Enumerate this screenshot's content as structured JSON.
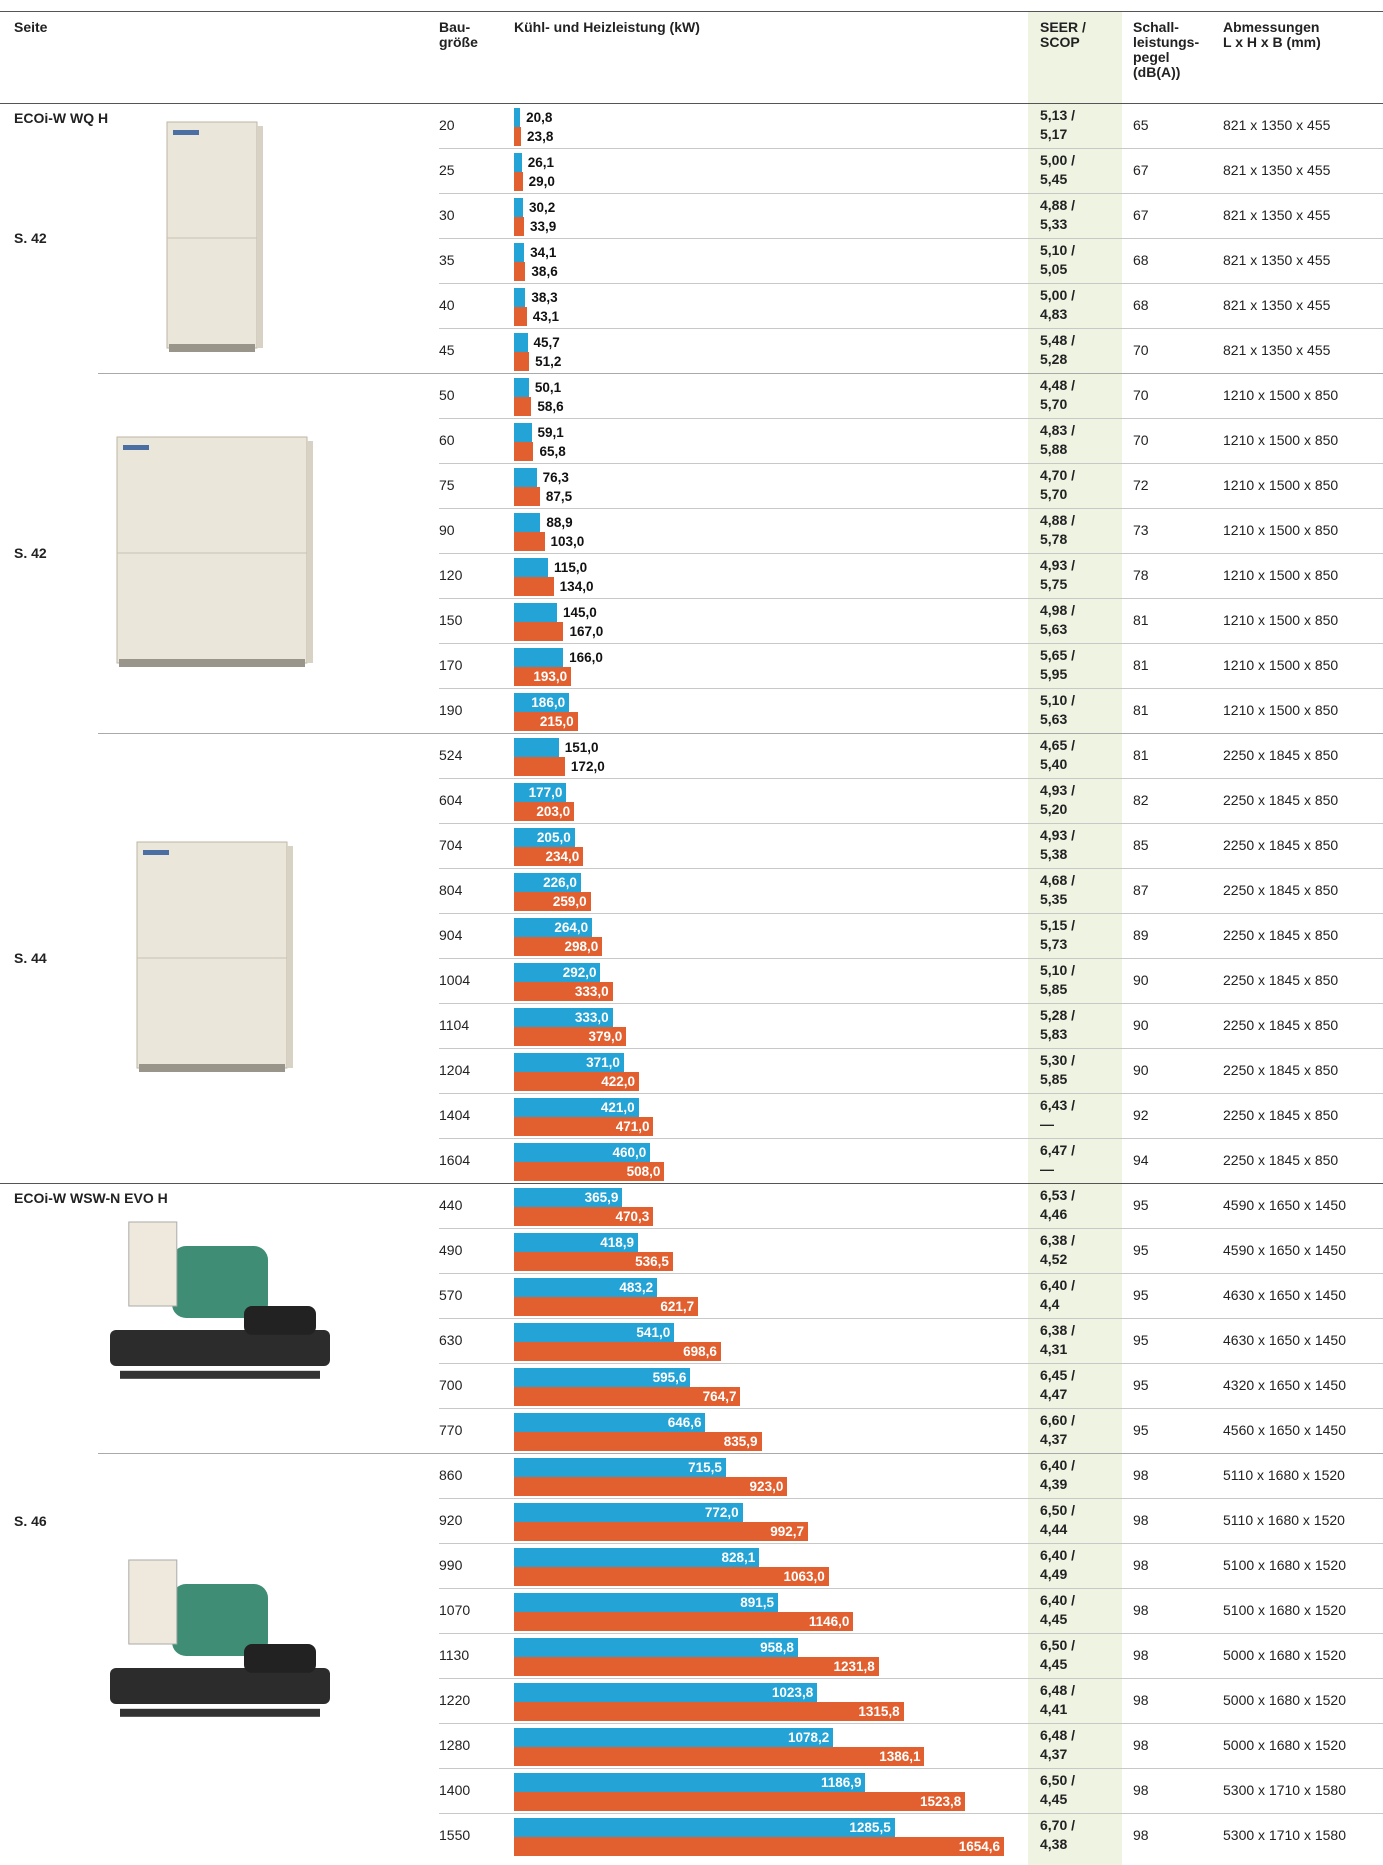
{
  "header": {
    "page": "Seite",
    "size": "Bau-\ngröße",
    "capacity": "Kühl- und Heizleistung (kW)",
    "efficiency": "SEER /\nSCOP",
    "noise": "Schall-\nleistungs-\npegel\n(dB(A))",
    "dims": "Abmessungen\nL x H x B (mm)"
  },
  "colors": {
    "cooling": "#23a3d6",
    "heating": "#e2602f"
  },
  "sections": [
    {
      "name": "ECOi-W WQ H",
      "blocks": [
        {
          "page": "S. 42",
          "rows": [
            {
              "size": "20",
              "cool": {
                "value": 20.8,
                "label": "20,8"
              },
              "heat": {
                "value": 23.8,
                "label": "23,8"
              },
              "seer": "5,13 /",
              "scop": "5,17",
              "noise": 65,
              "dims": "821 x 1350 x 455"
            },
            {
              "size": "25",
              "cool": {
                "value": 26.1,
                "label": "26,1"
              },
              "heat": {
                "value": 29.0,
                "label": "29,0"
              },
              "seer": "5,00 /",
              "scop": "5,45",
              "noise": 67,
              "dims": "821 x 1350 x 455"
            },
            {
              "size": "30",
              "cool": {
                "value": 30.2,
                "label": "30,2"
              },
              "heat": {
                "value": 33.9,
                "label": "33,9"
              },
              "seer": "4,88 /",
              "scop": "5,33",
              "noise": 67,
              "dims": "821 x 1350 x 455"
            },
            {
              "size": "35",
              "cool": {
                "value": 34.1,
                "label": "34,1"
              },
              "heat": {
                "value": 38.6,
                "label": "38,6"
              },
              "seer": "5,10 /",
              "scop": "5,05",
              "noise": 68,
              "dims": "821 x 1350 x 455"
            },
            {
              "size": "40",
              "cool": {
                "value": 38.3,
                "label": "38,3"
              },
              "heat": {
                "value": 43.1,
                "label": "43,1"
              },
              "seer": "5,00 /",
              "scop": "4,83",
              "noise": 68,
              "dims": "821 x 1350 x 455"
            },
            {
              "size": "45",
              "cool": {
                "value": 45.7,
                "label": "45,7"
              },
              "heat": {
                "value": 51.2,
                "label": "51,2"
              },
              "seer": "5,48 /",
              "scop": "5,28",
              "noise": 70,
              "dims": "821 x 1350 x 455"
            }
          ]
        },
        {
          "page": "S. 42",
          "rows": [
            {
              "size": "50",
              "cool": {
                "value": 50.1,
                "label": "50,1"
              },
              "heat": {
                "value": 58.6,
                "label": "58,6"
              },
              "seer": "4,48 /",
              "scop": "5,70",
              "noise": 70,
              "dims": "1210 x 1500 x 850"
            },
            {
              "size": "60",
              "cool": {
                "value": 59.1,
                "label": "59,1"
              },
              "heat": {
                "value": 65.8,
                "label": "65,8"
              },
              "seer": "4,83 /",
              "scop": "5,88",
              "noise": 70,
              "dims": "1210 x 1500 x 850"
            },
            {
              "size": "75",
              "cool": {
                "value": 76.3,
                "label": "76,3"
              },
              "heat": {
                "value": 87.5,
                "label": "87,5"
              },
              "seer": "4,70 /",
              "scop": "5,70",
              "noise": 72,
              "dims": "1210 x 1500 x 850"
            },
            {
              "size": "90",
              "cool": {
                "value": 88.9,
                "label": "88,9"
              },
              "heat": {
                "value": 103.0,
                "label": "103,0"
              },
              "seer": "4,88 /",
              "scop": "5,78",
              "noise": 73,
              "dims": "1210 x 1500 x 850"
            },
            {
              "size": "120",
              "cool": {
                "value": 115.0,
                "label": "115,0"
              },
              "heat": {
                "value": 134.0,
                "label": "134,0"
              },
              "seer": "4,93 /",
              "scop": "5,75",
              "noise": 78,
              "dims": "1210 x 1500 x 850"
            },
            {
              "size": "150",
              "cool": {
                "value": 145.0,
                "label": "145,0"
              },
              "heat": {
                "value": 167.0,
                "label": "167,0"
              },
              "seer": "4,98 /",
              "scop": "5,63",
              "noise": 81,
              "dims": "1210 x 1500 x 850"
            },
            {
              "size": "170",
              "cool": {
                "value": 166.0,
                "label": "166,0"
              },
              "heat": {
                "value": 193.0,
                "label": "193,0"
              },
              "seer": "5,65 /",
              "scop": "5,95",
              "noise": 81,
              "dims": "1210 x 1500 x 850"
            },
            {
              "size": "190",
              "cool": {
                "value": 186.0,
                "label": "186,0"
              },
              "heat": {
                "value": 215.0,
                "label": "215,0"
              },
              "seer": "5,10 /",
              "scop": "5,63",
              "noise": 81,
              "dims": "1210 x 1500 x 850"
            }
          ]
        },
        {
          "page": "S. 44",
          "rows": [
            {
              "size": "524",
              "cool": {
                "value": 151.0,
                "label": "151,0"
              },
              "heat": {
                "value": 172.0,
                "label": "172,0"
              },
              "seer": "4,65 /",
              "scop": "5,40",
              "noise": 81,
              "dims": "2250 x 1845 x 850"
            },
            {
              "size": "604",
              "cool": {
                "value": 177.0,
                "label": "177,0"
              },
              "heat": {
                "value": 203.0,
                "label": "203,0"
              },
              "seer": "4,93 /",
              "scop": "5,20",
              "noise": 82,
              "dims": "2250 x 1845 x 850"
            },
            {
              "size": "704",
              "cool": {
                "value": 205.0,
                "label": "205,0"
              },
              "heat": {
                "value": 234.0,
                "label": "234,0"
              },
              "seer": "4,93 /",
              "scop": "5,38",
              "noise": 85,
              "dims": "2250 x 1845 x 850"
            },
            {
              "size": "804",
              "cool": {
                "value": 226.0,
                "label": "226,0"
              },
              "heat": {
                "value": 259.0,
                "label": "259,0"
              },
              "seer": "4,68 /",
              "scop": "5,35",
              "noise": 87,
              "dims": "2250 x 1845 x 850"
            },
            {
              "size": "904",
              "cool": {
                "value": 264.0,
                "label": "264,0"
              },
              "heat": {
                "value": 298.0,
                "label": "298,0"
              },
              "seer": "5,15 /",
              "scop": "5,73",
              "noise": 89,
              "dims": "2250 x 1845 x 850"
            },
            {
              "size": "1004",
              "cool": {
                "value": 292.0,
                "label": "292,0"
              },
              "heat": {
                "value": 333.0,
                "label": "333,0"
              },
              "seer": "5,10 /",
              "scop": "5,85",
              "noise": 90,
              "dims": "2250 x 1845 x 850"
            },
            {
              "size": "1104",
              "cool": {
                "value": 333.0,
                "label": "333,0"
              },
              "heat": {
                "value": 379.0,
                "label": "379,0"
              },
              "seer": "5,28 /",
              "scop": "5,83",
              "noise": 90,
              "dims": "2250 x 1845 x 850"
            },
            {
              "size": "1204",
              "cool": {
                "value": 371.0,
                "label": "371,0"
              },
              "heat": {
                "value": 422.0,
                "label": "422,0"
              },
              "seer": "5,30 /",
              "scop": "5,85",
              "noise": 90,
              "dims": "2250 x 1845 x 850"
            },
            {
              "size": "1404",
              "cool": {
                "value": 421.0,
                "label": "421,0"
              },
              "heat": {
                "value": 471.0,
                "label": "471,0"
              },
              "seer": "6,43 /",
              "scop": "—",
              "noise": 92,
              "dims": "2250 x 1845 x 850"
            },
            {
              "size": "1604",
              "cool": {
                "value": 460.0,
                "label": "460,0"
              },
              "heat": {
                "value": 508.0,
                "label": "508,0"
              },
              "seer": "6,47 /",
              "scop": "—",
              "noise": 94,
              "dims": "2250 x 1845 x 850"
            }
          ]
        }
      ]
    },
    {
      "name": "ECOi-W WSW-N EVO H",
      "page": "S. 46",
      "blocks": [
        {
          "rows": [
            {
              "size": "440",
              "cool": {
                "value": 365.9,
                "label": "365,9"
              },
              "heat": {
                "value": 470.3,
                "label": "470,3"
              },
              "seer": "6,53 /",
              "scop": "4,46",
              "noise": 95,
              "dims": "4590 x 1650 x 1450"
            },
            {
              "size": "490",
              "cool": {
                "value": 418.9,
                "label": "418,9"
              },
              "heat": {
                "value": 536.5,
                "label": "536,5"
              },
              "seer": "6,38 /",
              "scop": "4,52",
              "noise": 95,
              "dims": "4590 x 1650 x 1450"
            },
            {
              "size": "570",
              "cool": {
                "value": 483.2,
                "label": "483,2"
              },
              "heat": {
                "value": 621.7,
                "label": "621,7"
              },
              "seer": "6,40 /",
              "scop": "4,4",
              "noise": 95,
              "dims": "4630 x 1650 x 1450"
            },
            {
              "size": "630",
              "cool": {
                "value": 541.0,
                "label": "541,0"
              },
              "heat": {
                "value": 698.6,
                "label": "698,6"
              },
              "seer": "6,38 /",
              "scop": "4,31",
              "noise": 95,
              "dims": "4630 x 1650 x 1450"
            },
            {
              "size": "700",
              "cool": {
                "value": 595.6,
                "label": "595,6"
              },
              "heat": {
                "value": 764.7,
                "label": "764,7"
              },
              "seer": "6,45 /",
              "scop": "4,47",
              "noise": 95,
              "dims": "4320 x 1650 x 1450"
            },
            {
              "size": "770",
              "cool": {
                "value": 646.6,
                "label": "646,6"
              },
              "heat": {
                "value": 835.9,
                "label": "835,9"
              },
              "seer": "6,60 /",
              "scop": "4,37",
              "noise": 95,
              "dims": "4560 x 1650 x 1450"
            }
          ]
        },
        {
          "rows": [
            {
              "size": "860",
              "cool": {
                "value": 715.5,
                "label": "715,5"
              },
              "heat": {
                "value": 923.0,
                "label": "923,0"
              },
              "seer": "6,40 /",
              "scop": "4,39",
              "noise": 98,
              "dims": "5110 x 1680 x 1520"
            },
            {
              "size": "920",
              "cool": {
                "value": 772.0,
                "label": "772,0"
              },
              "heat": {
                "value": 992.7,
                "label": "992,7"
              },
              "seer": "6,50 /",
              "scop": "4,44",
              "noise": 98,
              "dims": "5110 x 1680 x 1520"
            },
            {
              "size": "990",
              "cool": {
                "value": 828.1,
                "label": "828,1"
              },
              "heat": {
                "value": 1063.0,
                "label": "1063,0"
              },
              "seer": "6,40 /",
              "scop": "4,49",
              "noise": 98,
              "dims": "5100 x 1680 x 1520"
            },
            {
              "size": "1070",
              "cool": {
                "value": 891.5,
                "label": "891,5"
              },
              "heat": {
                "value": 1146.0,
                "label": "1146,0"
              },
              "seer": "6,40 /",
              "scop": "4,45",
              "noise": 98,
              "dims": "5100 x 1680 x 1520"
            },
            {
              "size": "1130",
              "cool": {
                "value": 958.8,
                "label": "958,8"
              },
              "heat": {
                "value": 1231.8,
                "label": "1231,8"
              },
              "seer": "6,50 /",
              "scop": "4,45",
              "noise": 98,
              "dims": "5000 x 1680 x 1520"
            },
            {
              "size": "1220",
              "cool": {
                "value": 1023.8,
                "label": "1023,8"
              },
              "heat": {
                "value": 1315.8,
                "label": "1315,8"
              },
              "seer": "6,48 /",
              "scop": "4,41",
              "noise": 98,
              "dims": "5000 x 1680 x 1520"
            },
            {
              "size": "1280",
              "cool": {
                "value": 1078.2,
                "label": "1078,2"
              },
              "heat": {
                "value": 1386.1,
                "label": "1386,1"
              },
              "seer": "6,48 /",
              "scop": "4,37",
              "noise": 98,
              "dims": "5000 x 1680 x 1520"
            },
            {
              "size": "1400",
              "cool": {
                "value": 1186.9,
                "label": "1186,9"
              },
              "heat": {
                "value": 1523.8,
                "label": "1523,8"
              },
              "seer": "6,50 /",
              "scop": "4,45",
              "noise": 98,
              "dims": "5300 x 1710 x 1580"
            },
            {
              "size": "1550",
              "cool": {
                "value": 1285.5,
                "label": "1285,5"
              },
              "heat": {
                "value": 1654.6,
                "label": "1654,6"
              },
              "seer": "6,70 /",
              "scop": "4,38",
              "noise": 98,
              "dims": "5300 x 1710 x 1580"
            }
          ]
        }
      ]
    }
  ]
}
